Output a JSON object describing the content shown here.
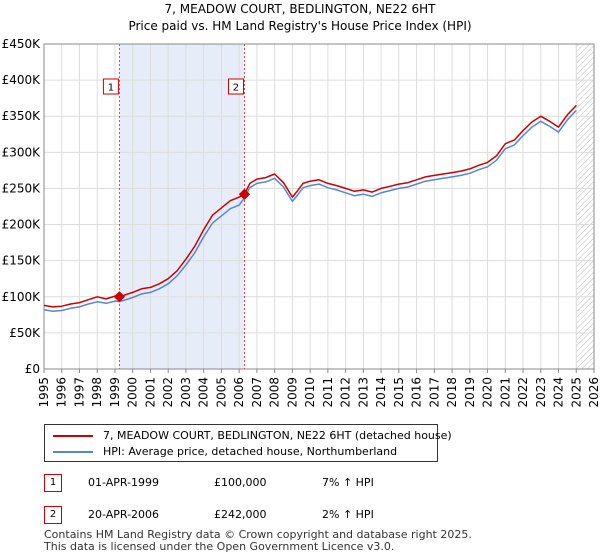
{
  "chart_data": {
    "type": "line",
    "title": "7, MEADOW COURT, BEDLINGTON, NE22 6HT",
    "subtitle": "Price paid vs. HM Land Registry's House Price Index (HPI)",
    "xlim": [
      1995,
      2026
    ],
    "ylim": [
      0,
      450000
    ],
    "x_ticks": [
      1995,
      1996,
      1997,
      1998,
      1999,
      2000,
      2001,
      2002,
      2003,
      2004,
      2005,
      2006,
      2007,
      2008,
      2009,
      2010,
      2011,
      2012,
      2013,
      2014,
      2015,
      2016,
      2017,
      2018,
      2019,
      2020,
      2021,
      2022,
      2023,
      2024,
      2025,
      2026
    ],
    "x_tick_labels": [
      "1995",
      "1996",
      "1997",
      "1998",
      "1999",
      "2000",
      "2001",
      "2002",
      "2003",
      "2004",
      "2005",
      "2006",
      "2007",
      "2008",
      "2009",
      "2010",
      "2011",
      "2012",
      "2013",
      "2014",
      "2015",
      "2016",
      "2017",
      "2018",
      "2019",
      "2020",
      "2021",
      "2022",
      "2023",
      "2024",
      "2025",
      "2026"
    ],
    "y_ticks": [
      0,
      50000,
      100000,
      150000,
      200000,
      250000,
      300000,
      350000,
      400000,
      450000
    ],
    "y_tick_labels": [
      "£0",
      "£50K",
      "£100K",
      "£150K",
      "£200K",
      "£250K",
      "£300K",
      "£350K",
      "£400K",
      "£450K"
    ],
    "grid": true,
    "shaded_span": [
      1999.25,
      2006.3
    ],
    "future_hatch_from": 2025.0,
    "series": [
      {
        "name": "7, MEADOW COURT, BEDLINGTON, NE22 6HT (detached house)",
        "color": "#cc0000",
        "x": [
          1995,
          1995.5,
          1996,
          1996.5,
          1997,
          1997.5,
          1998,
          1998.5,
          1999,
          1999.25,
          1999.5,
          2000,
          2000.5,
          2001,
          2001.5,
          2002,
          2002.5,
          2003,
          2003.5,
          2004,
          2004.5,
          2005,
          2005.5,
          2006,
          2006.3,
          2006.6,
          2007,
          2007.5,
          2008,
          2008.5,
          2009,
          2009.3,
          2009.6,
          2010,
          2010.5,
          2011,
          2011.5,
          2012,
          2012.5,
          2013,
          2013.5,
          2014,
          2014.5,
          2015,
          2015.5,
          2016,
          2016.5,
          2017,
          2017.5,
          2018,
          2018.5,
          2019,
          2019.5,
          2020,
          2020.5,
          2021,
          2021.5,
          2022,
          2022.5,
          2023,
          2023.5,
          2024,
          2024.5,
          2025
        ],
        "y": [
          88000,
          86000,
          87000,
          90000,
          92000,
          96000,
          100000,
          97000,
          101000,
          100000,
          102000,
          106000,
          111000,
          113000,
          118000,
          125000,
          136000,
          152000,
          170000,
          193000,
          213000,
          223000,
          233000,
          238000,
          242000,
          257000,
          263000,
          265000,
          270000,
          258000,
          238000,
          247000,
          257000,
          260000,
          262000,
          257000,
          254000,
          250000,
          246000,
          248000,
          245000,
          250000,
          253000,
          256000,
          258000,
          262000,
          266000,
          268000,
          270000,
          272000,
          274000,
          277000,
          282000,
          286000,
          295000,
          312000,
          317000,
          330000,
          342000,
          350000,
          343000,
          335000,
          352000,
          365000
        ]
      },
      {
        "name": "HPI: Average price, detached house, Northumberland",
        "color": "#5588cc",
        "x": [
          1995,
          1995.5,
          1996,
          1996.5,
          1997,
          1997.5,
          1998,
          1998.5,
          1999,
          1999.25,
          1999.5,
          2000,
          2000.5,
          2001,
          2001.5,
          2002,
          2002.5,
          2003,
          2003.5,
          2004,
          2004.5,
          2005,
          2005.5,
          2006,
          2006.3,
          2006.6,
          2007,
          2007.5,
          2008,
          2008.5,
          2009,
          2009.3,
          2009.6,
          2010,
          2010.5,
          2011,
          2011.5,
          2012,
          2012.5,
          2013,
          2013.5,
          2014,
          2014.5,
          2015,
          2015.5,
          2016,
          2016.5,
          2017,
          2017.5,
          2018,
          2018.5,
          2019,
          2019.5,
          2020,
          2020.5,
          2021,
          2021.5,
          2022,
          2022.5,
          2023,
          2023.5,
          2024,
          2024.5,
          2025
        ],
        "y": [
          82000,
          80000,
          81000,
          84000,
          86000,
          90000,
          93000,
          91000,
          94000,
          93500,
          95000,
          99000,
          104000,
          106000,
          111000,
          118000,
          129000,
          144000,
          161000,
          183000,
          202000,
          212000,
          222000,
          227000,
          237000,
          251000,
          257000,
          259000,
          264000,
          252000,
          232000,
          241000,
          251000,
          254000,
          256000,
          251000,
          248000,
          244000,
          240000,
          242000,
          239000,
          244000,
          247000,
          250000,
          252000,
          256000,
          260000,
          262000,
          264000,
          266000,
          268000,
          271000,
          276000,
          280000,
          289000,
          305000,
          310000,
          323000,
          335000,
          343000,
          336000,
          328000,
          345000,
          358000
        ]
      }
    ],
    "sales": [
      {
        "label": "1",
        "x": 1999.25,
        "y": 100000
      },
      {
        "label": "2",
        "x": 2006.3,
        "y": 242000
      }
    ]
  },
  "legend": {
    "property_label": "7, MEADOW COURT, BEDLINGTON, NE22 6HT (detached house)",
    "hpi_label": "HPI: Average price, detached house, Northumberland",
    "property_color": "#cc0000",
    "hpi_color": "#5588cc"
  },
  "transactions": [
    {
      "badge": "1",
      "date": "01-APR-1999",
      "price": "£100,000",
      "hpi": "7% ↑ HPI"
    },
    {
      "badge": "2",
      "date": "20-APR-2006",
      "price": "£242,000",
      "hpi": "2% ↑ HPI"
    }
  ],
  "footer": {
    "line1": "Contains HM Land Registry data © Crown copyright and database right 2025.",
    "line2": "This data is licensed under the Open Government Licence v3.0."
  }
}
